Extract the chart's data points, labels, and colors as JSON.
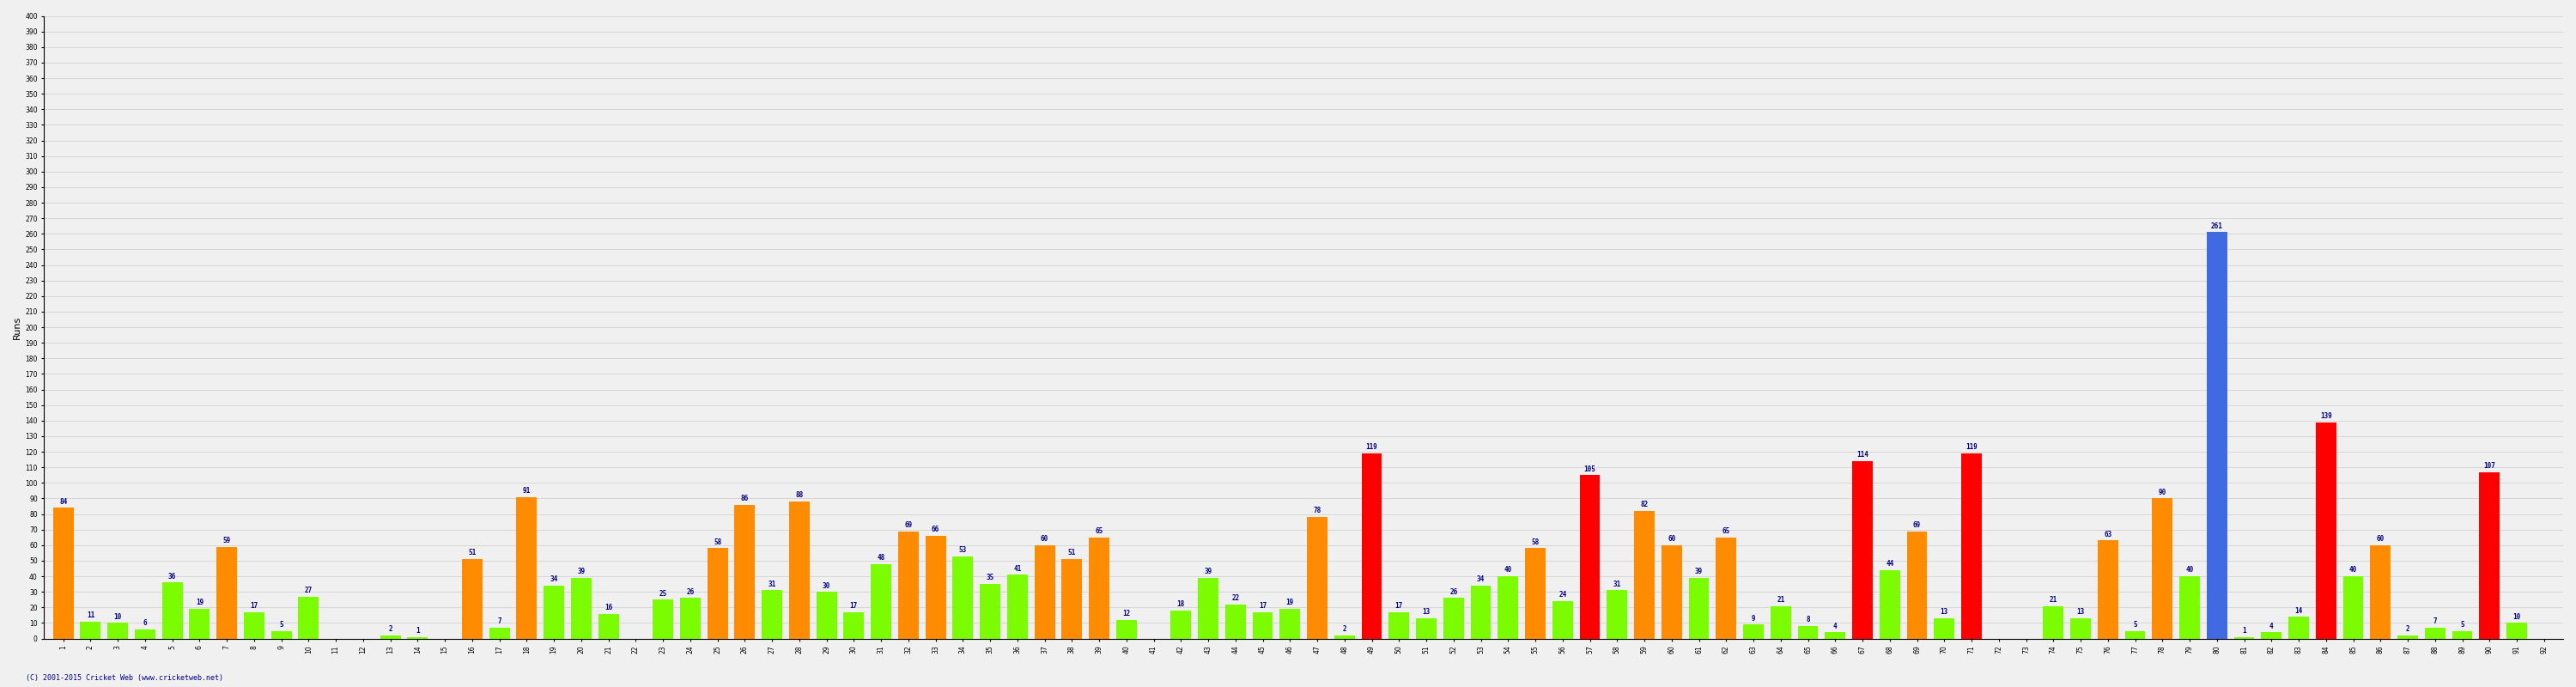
{
  "ylabel": "Runs",
  "footer": "(C) 2001-2015 Cricket Web (www.cricketweb.net)",
  "ylim": [
    0,
    400
  ],
  "yticks": [
    0,
    10,
    20,
    30,
    40,
    50,
    60,
    70,
    80,
    90,
    100,
    110,
    120,
    130,
    140,
    150,
    160,
    170,
    180,
    190,
    200,
    210,
    220,
    230,
    240,
    250,
    260,
    270,
    280,
    290,
    300,
    310,
    320,
    330,
    340,
    350,
    360,
    370,
    380,
    390,
    400
  ],
  "innings": [
    1,
    2,
    3,
    4,
    5,
    6,
    7,
    8,
    9,
    10,
    11,
    12,
    13,
    14,
    15,
    16,
    17,
    18,
    19,
    20,
    21,
    22,
    23,
    24,
    25,
    26,
    27,
    28,
    29,
    30,
    31,
    32,
    33,
    34,
    35,
    36,
    37,
    38,
    39,
    40,
    41,
    42,
    43,
    44,
    45,
    46,
    47,
    48,
    49,
    50,
    51,
    52,
    53,
    54,
    55,
    56,
    57,
    58,
    59,
    60,
    61,
    62,
    63,
    64,
    65,
    66,
    67,
    68,
    69,
    70,
    71,
    72,
    73,
    74,
    75,
    76,
    77,
    78,
    79,
    80,
    81,
    82,
    83,
    84,
    85,
    86,
    87,
    88,
    89,
    90,
    91,
    92
  ],
  "values": [
    84,
    11,
    10,
    6,
    36,
    19,
    59,
    17,
    5,
    27,
    0,
    0,
    2,
    1,
    0,
    51,
    7,
    91,
    34,
    39,
    16,
    0,
    25,
    26,
    58,
    86,
    31,
    88,
    30,
    17,
    48,
    69,
    66,
    53,
    35,
    41,
    60,
    51,
    65,
    12,
    0,
    18,
    39,
    22,
    17,
    19,
    78,
    2,
    119,
    17,
    13,
    26,
    34,
    40,
    58,
    24,
    105,
    31,
    82,
    60,
    39,
    65,
    9,
    21,
    8,
    4,
    114,
    44,
    69,
    13,
    119,
    0,
    0,
    21,
    13,
    63,
    5,
    90,
    40,
    261,
    1,
    4,
    14,
    139,
    40,
    60,
    2,
    7,
    5,
    107,
    10,
    0
  ],
  "colors": [
    "orange",
    "green",
    "green",
    "green",
    "green",
    "green",
    "orange",
    "green",
    "green",
    "green",
    "green",
    "green",
    "green",
    "green",
    "green",
    "orange",
    "green",
    "orange",
    "green",
    "green",
    "green",
    "green",
    "green",
    "green",
    "orange",
    "orange",
    "green",
    "orange",
    "green",
    "green",
    "green",
    "orange",
    "orange",
    "green",
    "green",
    "green",
    "orange",
    "orange",
    "orange",
    "green",
    "green",
    "green",
    "green",
    "green",
    "green",
    "green",
    "orange",
    "green",
    "red",
    "green",
    "green",
    "green",
    "green",
    "green",
    "orange",
    "green",
    "red",
    "green",
    "orange",
    "orange",
    "green",
    "orange",
    "green",
    "green",
    "green",
    "green",
    "red",
    "green",
    "orange",
    "green",
    "red",
    "green",
    "green",
    "green",
    "green",
    "orange",
    "green",
    "orange",
    "green",
    "blue",
    "green",
    "green",
    "green",
    "red",
    "green",
    "orange",
    "green",
    "green",
    "green",
    "red",
    "green",
    "green"
  ],
  "bg_color": "#f0f0f0",
  "grid_color": "#cccccc",
  "bar_color_orange": "#FF8C00",
  "bar_color_green": "#7CFC00",
  "bar_color_red": "#FF0000",
  "bar_color_blue": "#4169E1",
  "label_color": "#000080",
  "label_fontsize": 5.5,
  "tick_fontsize": 5.5
}
